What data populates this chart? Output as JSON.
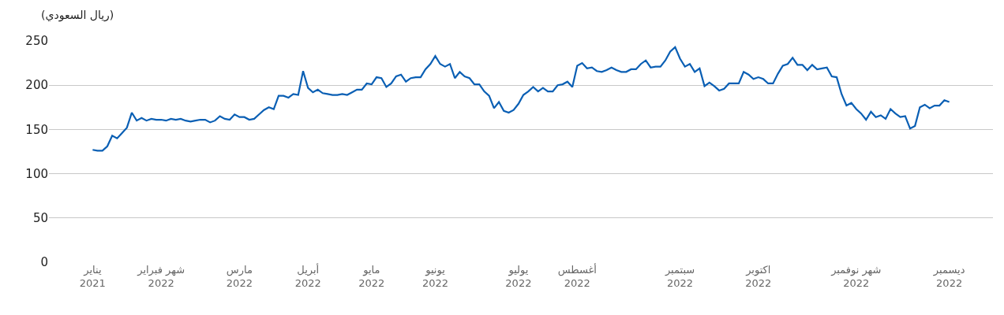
{
  "chart_data": {
    "type": "line",
    "ylabel": "(ريال السعودي)",
    "categories": [
      "يناير\n2021",
      null,
      null,
      null,
      null,
      null,
      null,
      null,
      null,
      null,
      null,
      null,
      null,
      null,
      "شهر فبراير\n2022",
      null,
      null,
      null,
      null,
      null,
      null,
      null,
      null,
      null,
      null,
      null,
      null,
      null,
      null,
      null,
      "مارس\n2022",
      null,
      null,
      null,
      null,
      null,
      null,
      null,
      null,
      null,
      null,
      null,
      null,
      null,
      "أبريل\n2022",
      null,
      null,
      null,
      null,
      null,
      null,
      null,
      null,
      null,
      null,
      null,
      null,
      "مايو\n2022",
      null,
      null,
      null,
      null,
      null,
      null,
      null,
      null,
      null,
      null,
      null,
      null,
      "يونيو\n2022",
      null,
      null,
      null,
      null,
      null,
      null,
      null,
      null,
      null,
      null,
      null,
      null,
      null,
      null,
      null,
      null,
      "يوليو\n2022",
      null,
      null,
      null,
      null,
      null,
      null,
      null,
      null,
      null,
      null,
      null,
      "أغسطس\n2022",
      null,
      null,
      null,
      null,
      null,
      null,
      null,
      null,
      null,
      null,
      null,
      null,
      null,
      null,
      null,
      null,
      null,
      null,
      null,
      null,
      "سبتمبر\n2022",
      null,
      null,
      null,
      null,
      null,
      null,
      null,
      null,
      null,
      null,
      null,
      null,
      null,
      null,
      null,
      "اكتوبر\n2022",
      null,
      null,
      null,
      null,
      null,
      null,
      null,
      null,
      null,
      null,
      null,
      null,
      null,
      null,
      null,
      null,
      null,
      null,
      null,
      "شهر نوفمبر\n2022",
      null,
      null,
      null,
      null,
      null,
      null,
      null,
      null,
      null,
      null,
      null,
      null,
      null,
      null,
      null,
      null,
      null,
      null,
      "ديسمبر\n2022"
    ],
    "series": [
      {
        "color": "#0a5fb4",
        "values": [
          127,
          126,
          126,
          131,
          143,
          140,
          146,
          152,
          169,
          160,
          163,
          160,
          162,
          161,
          161,
          160,
          162,
          161,
          162,
          160,
          159,
          160,
          161,
          161,
          158,
          160,
          165,
          162,
          161,
          167,
          164,
          164,
          161,
          162,
          167,
          172,
          175,
          173,
          188,
          188,
          186,
          190,
          189,
          216,
          197,
          192,
          195,
          191,
          190,
          189,
          189,
          190,
          189,
          192,
          195,
          195,
          202,
          201,
          209,
          208,
          198,
          202,
          210,
          212,
          204,
          208,
          209,
          209,
          218,
          224,
          233,
          224,
          221,
          224,
          208,
          215,
          210,
          208,
          201,
          201,
          193,
          188,
          174,
          181,
          171,
          169,
          172,
          179,
          189,
          193,
          198,
          193,
          197,
          193,
          193,
          200,
          201,
          204,
          198,
          222,
          225,
          219,
          220,
          216,
          215,
          217,
          220,
          217,
          215,
          215,
          218,
          218,
          224,
          228,
          220,
          221,
          221,
          228,
          238,
          243,
          230,
          221,
          224,
          215,
          219,
          199,
          203,
          199,
          194,
          196,
          202,
          202,
          202,
          215,
          212,
          207,
          209,
          207,
          202,
          202,
          213,
          222,
          224,
          231,
          223,
          223,
          217,
          223,
          218,
          219,
          220,
          210,
          209,
          190,
          177,
          180,
          173,
          168,
          161,
          170,
          164,
          166,
          162,
          173,
          168,
          164,
          165,
          151,
          154,
          175,
          178,
          174,
          177,
          177,
          183,
          181
        ]
      }
    ],
    "ylim": [
      0,
      250
    ],
    "yticks": [
      0,
      50,
      100,
      150,
      200,
      250
    ],
    "grid": "y"
  }
}
